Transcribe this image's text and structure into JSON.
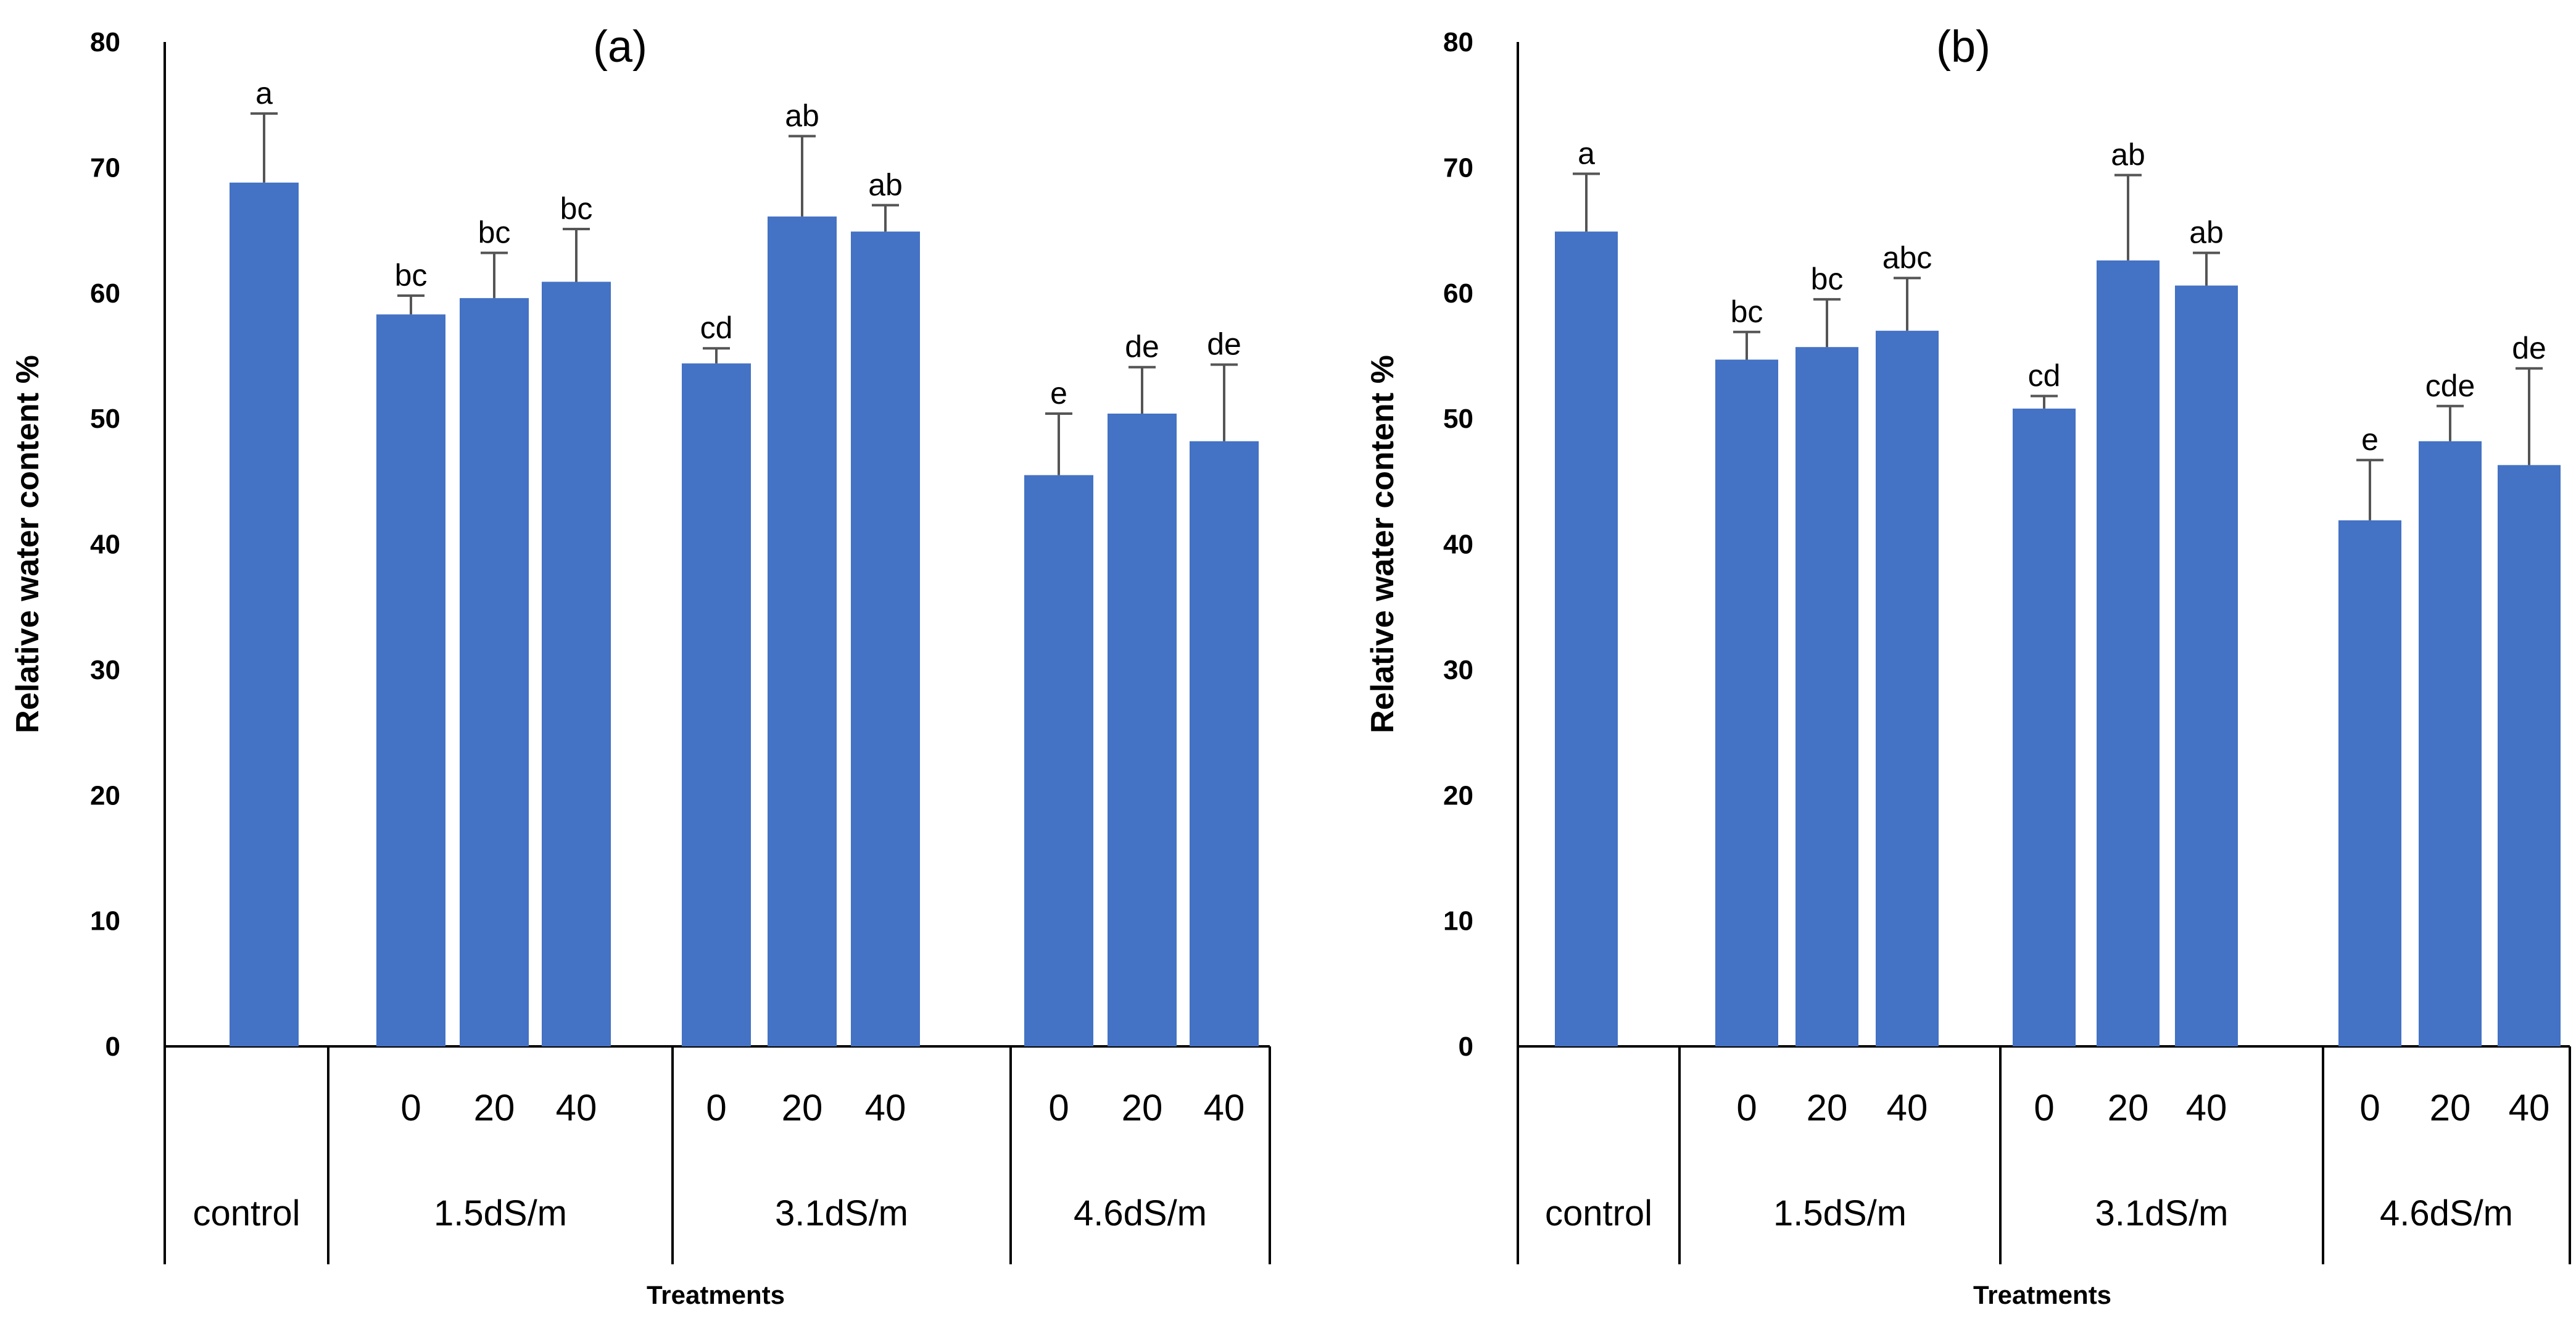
{
  "chart_data": [
    {
      "type": "bar",
      "title": "(a)",
      "ylabel": "Relative water content %",
      "xlabel": "Treatments",
      "ylim": [
        0,
        80
      ],
      "yticks": [
        0,
        10,
        20,
        30,
        40,
        50,
        60,
        70,
        80
      ],
      "color": "#4472c4",
      "groups": [
        "control",
        "1.5dS/m",
        "3.1dS/m",
        "4.6dS/m"
      ],
      "bars": [
        {
          "group": 0,
          "label": "",
          "value": 68.8,
          "error": 5.5,
          "letter": "a"
        },
        {
          "group": 1,
          "label": "0",
          "value": 58.3,
          "error": 1.5,
          "letter": "bc"
        },
        {
          "group": 1,
          "label": "20",
          "value": 59.6,
          "error": 3.6,
          "letter": "bc"
        },
        {
          "group": 1,
          "label": "40",
          "value": 60.9,
          "error": 4.2,
          "letter": "bc"
        },
        {
          "group": 2,
          "label": "0",
          "value": 54.4,
          "error": 1.2,
          "letter": "cd"
        },
        {
          "group": 2,
          "label": "20",
          "value": 66.1,
          "error": 6.4,
          "letter": "ab"
        },
        {
          "group": 2,
          "label": "40",
          "value": 64.9,
          "error": 2.1,
          "letter": "ab"
        },
        {
          "group": 3,
          "label": "0",
          "value": 45.5,
          "error": 4.9,
          "letter": "e"
        },
        {
          "group": 3,
          "label": "20",
          "value": 50.4,
          "error": 3.7,
          "letter": "de"
        },
        {
          "group": 3,
          "label": "40",
          "value": 48.2,
          "error": 6.1,
          "letter": "de"
        }
      ]
    },
    {
      "type": "bar",
      "title": "(b)",
      "ylabel": "Relative water content %",
      "xlabel": "Treatments",
      "ylim": [
        0,
        80
      ],
      "yticks": [
        0,
        10,
        20,
        30,
        40,
        50,
        60,
        70,
        80
      ],
      "color": "#4472c4",
      "groups": [
        "control",
        "1.5dS/m",
        "3.1dS/m",
        "4.6dS/m"
      ],
      "bars": [
        {
          "group": 0,
          "label": "",
          "value": 64.9,
          "error": 4.6,
          "letter": "a"
        },
        {
          "group": 1,
          "label": "0",
          "value": 54.7,
          "error": 2.2,
          "letter": "bc"
        },
        {
          "group": 1,
          "label": "20",
          "value": 55.7,
          "error": 3.8,
          "letter": "bc"
        },
        {
          "group": 1,
          "label": "40",
          "value": 57.0,
          "error": 4.2,
          "letter": "abc"
        },
        {
          "group": 2,
          "label": "0",
          "value": 50.8,
          "error": 1.0,
          "letter": "cd"
        },
        {
          "group": 2,
          "label": "20",
          "value": 62.6,
          "error": 6.8,
          "letter": "ab"
        },
        {
          "group": 2,
          "label": "40",
          "value": 60.6,
          "error": 2.6,
          "letter": "ab"
        },
        {
          "group": 3,
          "label": "0",
          "value": 41.9,
          "error": 4.8,
          "letter": "e"
        },
        {
          "group": 3,
          "label": "20",
          "value": 48.2,
          "error": 2.8,
          "letter": "cde"
        },
        {
          "group": 3,
          "label": "40",
          "value": 46.3,
          "error": 7.7,
          "letter": "de"
        }
      ]
    }
  ]
}
